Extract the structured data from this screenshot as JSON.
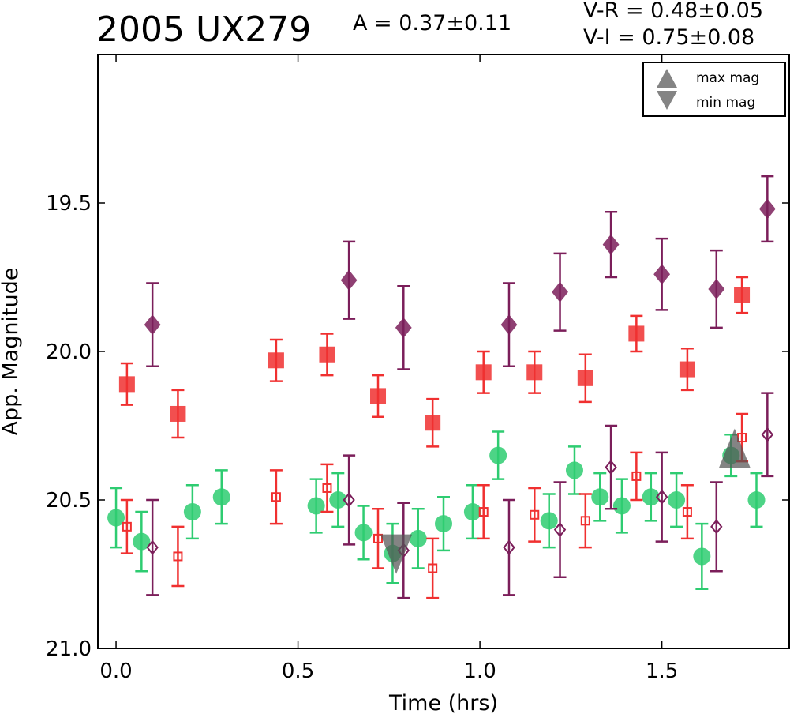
{
  "header": {
    "title": "2005 UX279",
    "amplitude": "A  = 0.37±0.11",
    "color_vr": "V-R = 0.48±0.05",
    "color_vi": "V-I  = 0.75±0.08"
  },
  "chart_data": {
    "type": "scatter",
    "xlabel": "Time (hrs)",
    "ylabel": "App. Magnitude",
    "xlim": [
      -0.05,
      1.85
    ],
    "ylim": [
      21.0,
      19.0
    ],
    "y_inverted": true,
    "xticks": [
      "0.0",
      "0.5",
      "1.0",
      "1.5"
    ],
    "yticks": [
      "19.5",
      "20.0",
      "20.5",
      "21.0"
    ],
    "xtick_values": [
      0.0,
      0.5,
      1.0,
      1.5
    ],
    "ytick_values": [
      19.5,
      20.0,
      20.5,
      21.0
    ],
    "grid": false,
    "legend_placement": "top-right",
    "legend": [
      {
        "label": "max mag",
        "marker": "triangle-up",
        "color": "#555555"
      },
      {
        "label": "min mag",
        "marker": "triangle-down",
        "color": "#555555"
      }
    ],
    "series": [
      {
        "marker": "diamond",
        "filled": true,
        "color": "#7b1e5a",
        "points": [
          [
            0.1,
            19.91,
            0.14
          ],
          [
            0.64,
            19.76,
            0.13
          ],
          [
            0.79,
            19.92,
            0.14
          ],
          [
            1.08,
            19.91,
            0.14
          ],
          [
            1.22,
            19.8,
            0.13
          ],
          [
            1.36,
            19.64,
            0.11
          ],
          [
            1.5,
            19.74,
            0.12
          ],
          [
            1.65,
            19.79,
            0.13
          ],
          [
            1.79,
            19.52,
            0.11
          ]
        ]
      },
      {
        "marker": "square",
        "filled": true,
        "color": "#f03030",
        "points": [
          [
            0.03,
            20.11,
            0.07
          ],
          [
            0.17,
            20.21,
            0.08
          ],
          [
            0.44,
            20.03,
            0.07
          ],
          [
            0.58,
            20.01,
            0.07
          ],
          [
            0.72,
            20.15,
            0.07
          ],
          [
            0.87,
            20.24,
            0.08
          ],
          [
            1.01,
            20.07,
            0.07
          ],
          [
            1.15,
            20.07,
            0.07
          ],
          [
            1.29,
            20.09,
            0.08
          ],
          [
            1.43,
            19.94,
            0.06
          ],
          [
            1.57,
            20.06,
            0.07
          ],
          [
            1.72,
            19.81,
            0.06
          ]
        ]
      },
      {
        "marker": "circle",
        "filled": true,
        "color": "#2ecc71",
        "points": [
          [
            0.0,
            20.56,
            0.1
          ],
          [
            0.07,
            20.64,
            0.1
          ],
          [
            0.21,
            20.54,
            0.09
          ],
          [
            0.29,
            20.49,
            0.09
          ],
          [
            0.55,
            20.52,
            0.09
          ],
          [
            0.61,
            20.5,
            0.09
          ],
          [
            0.68,
            20.61,
            0.09
          ],
          [
            0.76,
            20.68,
            0.1
          ],
          [
            0.83,
            20.63,
            0.1
          ],
          [
            0.9,
            20.58,
            0.09
          ],
          [
            0.98,
            20.54,
            0.09
          ],
          [
            1.05,
            20.35,
            0.08
          ],
          [
            1.19,
            20.57,
            0.09
          ],
          [
            1.26,
            20.4,
            0.08
          ],
          [
            1.33,
            20.49,
            0.08
          ],
          [
            1.39,
            20.52,
            0.09
          ],
          [
            1.47,
            20.49,
            0.08
          ],
          [
            1.54,
            20.5,
            0.09
          ],
          [
            1.61,
            20.69,
            0.11
          ],
          [
            1.69,
            20.35,
            0.07
          ],
          [
            1.76,
            20.5,
            0.09
          ]
        ]
      },
      {
        "marker": "square",
        "filled": false,
        "color": "#f03030",
        "points": [
          [
            0.03,
            20.59,
            0.09
          ],
          [
            0.17,
            20.69,
            0.1
          ],
          [
            0.44,
            20.49,
            0.09
          ],
          [
            0.58,
            20.46,
            0.08
          ],
          [
            0.72,
            20.63,
            0.1
          ],
          [
            0.87,
            20.73,
            0.1
          ],
          [
            1.01,
            20.54,
            0.09
          ],
          [
            1.15,
            20.55,
            0.09
          ],
          [
            1.29,
            20.57,
            0.09
          ],
          [
            1.43,
            20.42,
            0.08
          ],
          [
            1.57,
            20.54,
            0.09
          ],
          [
            1.72,
            20.29,
            0.08
          ]
        ]
      },
      {
        "marker": "diamond",
        "filled": false,
        "color": "#7b1e5a",
        "points": [
          [
            0.1,
            20.66,
            0.16
          ],
          [
            0.64,
            20.5,
            0.15
          ],
          [
            0.79,
            20.67,
            0.16
          ],
          [
            1.08,
            20.66,
            0.16
          ],
          [
            1.22,
            20.6,
            0.16
          ],
          [
            1.36,
            20.39,
            0.14
          ],
          [
            1.5,
            20.49,
            0.15
          ],
          [
            1.65,
            20.59,
            0.15
          ],
          [
            1.79,
            20.28,
            0.14
          ]
        ]
      }
    ],
    "extrema": [
      {
        "type": "min mag",
        "x": 0.77,
        "y": 20.68,
        "color": "#555555"
      },
      {
        "type": "max mag",
        "x": 1.7,
        "y": 20.35,
        "color": "#555555"
      }
    ]
  }
}
